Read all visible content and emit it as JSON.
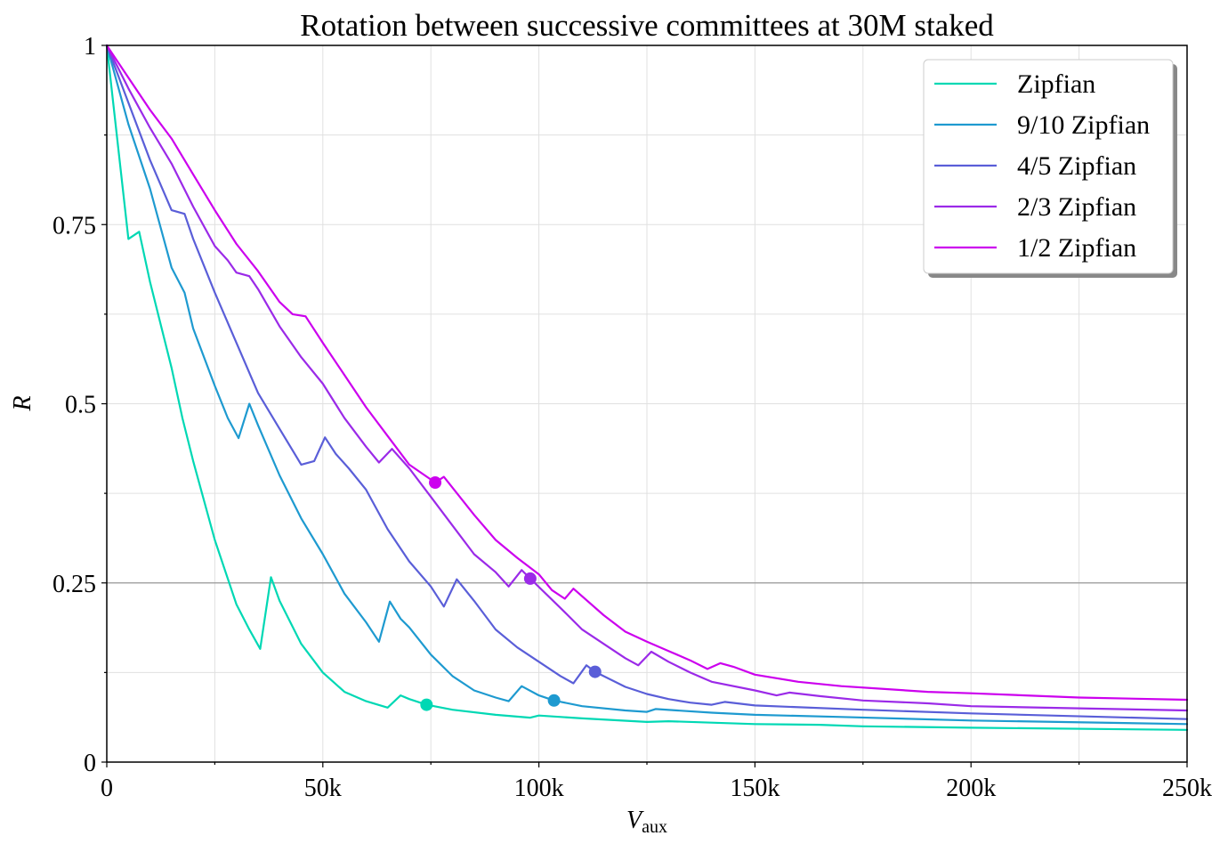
{
  "chart_data": {
    "type": "line",
    "title": "Rotation between successive committees at 30M staked",
    "ylabel": "R",
    "xlabel_main": "V",
    "xlabel_sub": "aux",
    "xlim": [
      0,
      250000
    ],
    "ylim": [
      0,
      1
    ],
    "x_ticks": [
      {
        "value": 0,
        "label": "0"
      },
      {
        "value": 50000,
        "label": "50k"
      },
      {
        "value": 100000,
        "label": "100k"
      },
      {
        "value": 150000,
        "label": "150k"
      },
      {
        "value": 200000,
        "label": "200k"
      },
      {
        "value": 250000,
        "label": "250k"
      }
    ],
    "y_ticks": [
      {
        "value": 0,
        "label": "0"
      },
      {
        "value": 0.25,
        "label": "0.25"
      },
      {
        "value": 0.5,
        "label": "0.5"
      },
      {
        "value": 0.75,
        "label": "0.75"
      },
      {
        "value": 1,
        "label": "1"
      }
    ],
    "grid": true,
    "reference_line": {
      "y": 0.25,
      "color": "#999999"
    },
    "legend_position": "top-right",
    "series": [
      {
        "name": "Zipfian",
        "color": "#00d8b4",
        "marker": {
          "x": 74000,
          "y": 0.08
        },
        "points": [
          [
            0,
            1
          ],
          [
            5000,
            0.73
          ],
          [
            7500,
            0.74
          ],
          [
            10000,
            0.67
          ],
          [
            15000,
            0.55
          ],
          [
            17500,
            0.48
          ],
          [
            20000,
            0.42
          ],
          [
            25000,
            0.31
          ],
          [
            30000,
            0.22
          ],
          [
            33000,
            0.185
          ],
          [
            35500,
            0.158
          ],
          [
            38000,
            0.258
          ],
          [
            40000,
            0.225
          ],
          [
            45000,
            0.165
          ],
          [
            50000,
            0.125
          ],
          [
            55000,
            0.098
          ],
          [
            60000,
            0.085
          ],
          [
            65000,
            0.076
          ],
          [
            68000,
            0.093
          ],
          [
            70000,
            0.088
          ],
          [
            74000,
            0.08
          ],
          [
            80000,
            0.073
          ],
          [
            90000,
            0.066
          ],
          [
            98000,
            0.062
          ],
          [
            100000,
            0.065
          ],
          [
            110000,
            0.061
          ],
          [
            125000,
            0.056
          ],
          [
            130000,
            0.057
          ],
          [
            150000,
            0.053
          ],
          [
            165000,
            0.052
          ],
          [
            175000,
            0.05
          ],
          [
            200000,
            0.048
          ],
          [
            250000,
            0.045
          ]
        ]
      },
      {
        "name": "9/10 Zipfian",
        "color": "#1e9ad0",
        "marker": {
          "x": 103500,
          "y": 0.086
        },
        "points": [
          [
            0,
            1
          ],
          [
            5000,
            0.89
          ],
          [
            10000,
            0.8
          ],
          [
            15000,
            0.69
          ],
          [
            18000,
            0.655
          ],
          [
            20000,
            0.605
          ],
          [
            25000,
            0.525
          ],
          [
            28000,
            0.48
          ],
          [
            30500,
            0.452
          ],
          [
            33000,
            0.5
          ],
          [
            35000,
            0.47
          ],
          [
            40000,
            0.4
          ],
          [
            45000,
            0.34
          ],
          [
            50000,
            0.29
          ],
          [
            55000,
            0.235
          ],
          [
            60000,
            0.195
          ],
          [
            63000,
            0.168
          ],
          [
            65500,
            0.224
          ],
          [
            68000,
            0.2
          ],
          [
            70000,
            0.188
          ],
          [
            75000,
            0.15
          ],
          [
            80000,
            0.12
          ],
          [
            85000,
            0.1
          ],
          [
            90000,
            0.09
          ],
          [
            93000,
            0.085
          ],
          [
            96000,
            0.106
          ],
          [
            100000,
            0.093
          ],
          [
            103500,
            0.086
          ],
          [
            110000,
            0.078
          ],
          [
            120000,
            0.072
          ],
          [
            125000,
            0.07
          ],
          [
            127000,
            0.074
          ],
          [
            140000,
            0.069
          ],
          [
            150000,
            0.066
          ],
          [
            170000,
            0.063
          ],
          [
            200000,
            0.058
          ],
          [
            250000,
            0.053
          ]
        ]
      },
      {
        "name": "4/5 Zipfian",
        "color": "#5a5ed8",
        "marker": {
          "x": 113000,
          "y": 0.126
        },
        "points": [
          [
            0,
            1
          ],
          [
            5000,
            0.92
          ],
          [
            10000,
            0.84
          ],
          [
            15000,
            0.77
          ],
          [
            18000,
            0.765
          ],
          [
            20000,
            0.73
          ],
          [
            25000,
            0.655
          ],
          [
            30000,
            0.585
          ],
          [
            35000,
            0.515
          ],
          [
            40000,
            0.465
          ],
          [
            45000,
            0.415
          ],
          [
            48000,
            0.42
          ],
          [
            50500,
            0.453
          ],
          [
            53000,
            0.43
          ],
          [
            56000,
            0.41
          ],
          [
            60000,
            0.38
          ],
          [
            65000,
            0.325
          ],
          [
            70000,
            0.28
          ],
          [
            75000,
            0.245
          ],
          [
            78000,
            0.217
          ],
          [
            81000,
            0.255
          ],
          [
            85000,
            0.225
          ],
          [
            90000,
            0.185
          ],
          [
            95000,
            0.16
          ],
          [
            100000,
            0.14
          ],
          [
            105000,
            0.12
          ],
          [
            108000,
            0.11
          ],
          [
            111000,
            0.135
          ],
          [
            113000,
            0.126
          ],
          [
            120000,
            0.105
          ],
          [
            125000,
            0.095
          ],
          [
            130000,
            0.088
          ],
          [
            135000,
            0.083
          ],
          [
            140000,
            0.08
          ],
          [
            143000,
            0.084
          ],
          [
            150000,
            0.079
          ],
          [
            175000,
            0.073
          ],
          [
            200000,
            0.068
          ],
          [
            250000,
            0.06
          ]
        ]
      },
      {
        "name": "2/3 Zipfian",
        "color": "#9b2ae8",
        "marker": {
          "x": 98000,
          "y": 0.256
        },
        "points": [
          [
            0,
            1
          ],
          [
            5000,
            0.94
          ],
          [
            10000,
            0.885
          ],
          [
            15000,
            0.835
          ],
          [
            20000,
            0.775
          ],
          [
            25000,
            0.72
          ],
          [
            28000,
            0.7
          ],
          [
            30000,
            0.683
          ],
          [
            33000,
            0.678
          ],
          [
            35000,
            0.66
          ],
          [
            40000,
            0.608
          ],
          [
            45000,
            0.565
          ],
          [
            50000,
            0.528
          ],
          [
            55000,
            0.48
          ],
          [
            60000,
            0.44
          ],
          [
            63000,
            0.418
          ],
          [
            66000,
            0.437
          ],
          [
            70000,
            0.41
          ],
          [
            75000,
            0.37
          ],
          [
            80000,
            0.33
          ],
          [
            85000,
            0.29
          ],
          [
            90000,
            0.265
          ],
          [
            93000,
            0.245
          ],
          [
            96000,
            0.268
          ],
          [
            98000,
            0.256
          ],
          [
            105000,
            0.215
          ],
          [
            110000,
            0.185
          ],
          [
            115000,
            0.165
          ],
          [
            120000,
            0.145
          ],
          [
            123000,
            0.135
          ],
          [
            126000,
            0.154
          ],
          [
            130000,
            0.14
          ],
          [
            135000,
            0.125
          ],
          [
            140000,
            0.112
          ],
          [
            150000,
            0.1
          ],
          [
            155000,
            0.093
          ],
          [
            158000,
            0.097
          ],
          [
            165000,
            0.092
          ],
          [
            175000,
            0.086
          ],
          [
            190000,
            0.082
          ],
          [
            200000,
            0.078
          ],
          [
            225000,
            0.075
          ],
          [
            250000,
            0.072
          ]
        ]
      },
      {
        "name": "1/2 Zipfian",
        "color": "#cc00ee",
        "marker": {
          "x": 76000,
          "y": 0.39
        },
        "points": [
          [
            0,
            1
          ],
          [
            5000,
            0.955
          ],
          [
            10000,
            0.91
          ],
          [
            15000,
            0.87
          ],
          [
            20000,
            0.82
          ],
          [
            25000,
            0.77
          ],
          [
            30000,
            0.723
          ],
          [
            35000,
            0.685
          ],
          [
            40000,
            0.642
          ],
          [
            43000,
            0.625
          ],
          [
            46000,
            0.622
          ],
          [
            50000,
            0.585
          ],
          [
            55000,
            0.54
          ],
          [
            60000,
            0.495
          ],
          [
            65000,
            0.455
          ],
          [
            70000,
            0.415
          ],
          [
            76000,
            0.39
          ],
          [
            78000,
            0.398
          ],
          [
            85000,
            0.345
          ],
          [
            90000,
            0.31
          ],
          [
            95000,
            0.285
          ],
          [
            100000,
            0.262
          ],
          [
            103000,
            0.24
          ],
          [
            106000,
            0.228
          ],
          [
            108000,
            0.242
          ],
          [
            115000,
            0.205
          ],
          [
            120000,
            0.182
          ],
          [
            125000,
            0.168
          ],
          [
            130000,
            0.155
          ],
          [
            135000,
            0.142
          ],
          [
            139000,
            0.13
          ],
          [
            142000,
            0.138
          ],
          [
            145000,
            0.133
          ],
          [
            150000,
            0.122
          ],
          [
            160000,
            0.112
          ],
          [
            170000,
            0.106
          ],
          [
            180000,
            0.102
          ],
          [
            190000,
            0.098
          ],
          [
            200000,
            0.096
          ],
          [
            225000,
            0.09
          ],
          [
            250000,
            0.087
          ]
        ]
      }
    ]
  }
}
